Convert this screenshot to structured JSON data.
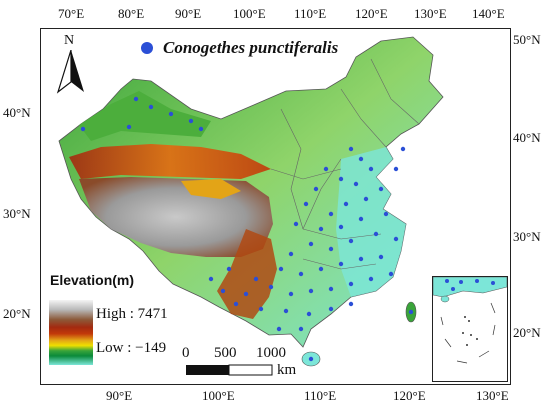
{
  "map": {
    "species_name": "Conogethes punctiferalis",
    "north_label": "N",
    "legend": {
      "title": "Elevation(m)",
      "high_label": "High : 7471",
      "low_label": "Low : −149",
      "colors": [
        "#f4f4f4",
        "#b8b8b8",
        "#8c5a3a",
        "#a32a10",
        "#c23a0a",
        "#e3a417",
        "#f0e000",
        "#3aa43a",
        "#0a8a3a",
        "#7ce6d8"
      ]
    },
    "scale": {
      "labels": [
        "0",
        "500",
        "1000"
      ],
      "unit": "km"
    },
    "axes": {
      "top": [
        "70°E",
        "80°E",
        "90°E",
        "100°E",
        "110°E",
        "120°E",
        "130°E",
        "140°E"
      ],
      "bottom": [
        "90°E",
        "100°E",
        "110°E",
        "120°E",
        "130°E"
      ],
      "left": [
        "40°N",
        "30°N",
        "20°N"
      ],
      "right": [
        "50°N",
        "40°N",
        "30°N",
        "20°N"
      ]
    },
    "colors": {
      "occurrence": "#2b4fd6",
      "border": "#555555"
    }
  }
}
